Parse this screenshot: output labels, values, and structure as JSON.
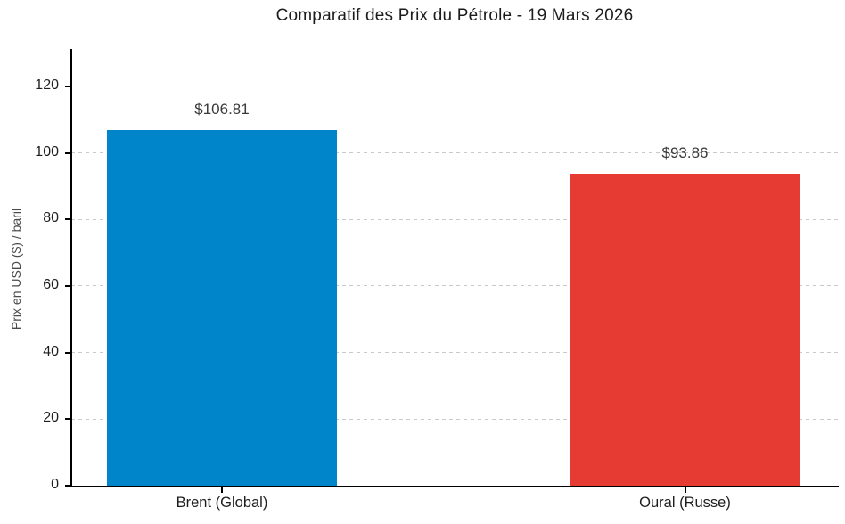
{
  "page": {
    "title": "Comparatif des Prix du Pétrole - 19 Mars 2026"
  },
  "chart_data": {
    "type": "bar",
    "title": "Comparatif des Prix du Pétrole - 19 Mars 2026",
    "categories": [
      "Brent (Global)",
      "Oural (Russe)"
    ],
    "values": [
      106.81,
      93.86
    ],
    "value_labels": [
      "$106.81",
      "$93.86"
    ],
    "bar_colors": [
      "#0085CA",
      "#E63B33"
    ],
    "xlabel": "",
    "ylabel": "Prix en USD ($) / baril",
    "ylim": [
      0,
      130.7
    ],
    "yticks": [
      0,
      20,
      40,
      60,
      80,
      100,
      120
    ],
    "grid": "horizontal-dashed",
    "gridline_color": "#c9c9c9",
    "legend": "none"
  }
}
